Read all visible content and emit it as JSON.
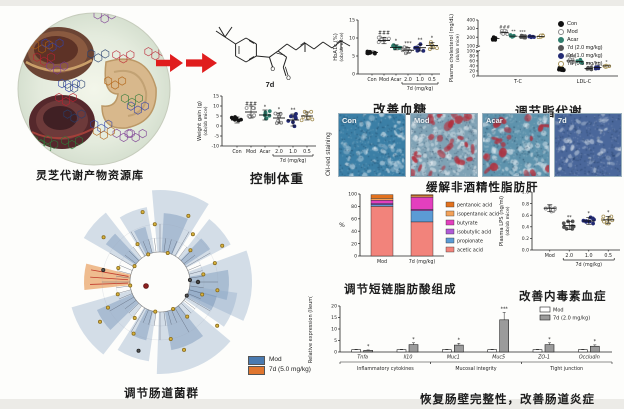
{
  "panels": {
    "library": {
      "caption": "灵芝代谢产物资源库"
    },
    "compound": {
      "label": "7d"
    },
    "weight": {
      "caption": "控制体重"
    },
    "glucose": {
      "caption": "改善血糖"
    },
    "lipid": {
      "caption": "调节脂代谢"
    },
    "liver": {
      "caption": "缓解非酒精性脂肪肝",
      "stain_label": "Oil-red staining",
      "images": [
        {
          "label": "Con",
          "base": "#3b7fa6",
          "red": 0,
          "pale": 70
        },
        {
          "label": "Mod",
          "base": "#7fa2b5",
          "red": 30,
          "pale": 130
        },
        {
          "label": "Acar",
          "base": "#5e93ad",
          "red": 20,
          "pale": 95
        },
        {
          "label": "7d",
          "base": "#4a679b",
          "red": 0,
          "pale": 45
        }
      ]
    },
    "microbiota": {
      "caption": "调节肠道菌群",
      "legend": [
        {
          "label": "Mod",
          "color": "#4a7ab0"
        },
        {
          "label": "7d (5.0 mg/kg)",
          "color": "#e0762f"
        }
      ]
    },
    "scfa": {
      "caption": "调节短链脂肪酸组成"
    },
    "lps": {
      "caption": "改善内毒素血症"
    },
    "ileum": {
      "caption": "恢复肠壁完整性，改善肠道炎症"
    }
  },
  "chart_data": [
    {
      "id": "weight",
      "type": "scatter",
      "seed": 1,
      "ylabel": "Weight gain (g)",
      "ylabel2": "(ob/ob mice)",
      "ylim": [
        -10,
        15
      ],
      "yticks": [
        -10,
        -5,
        0,
        5,
        10,
        15
      ],
      "groups": [
        {
          "label": "Con",
          "mean": 3,
          "sd": 1.5,
          "color": "#151515",
          "open": false
        },
        {
          "label": "Mod",
          "mean": 7,
          "sd": 3,
          "color": "#8a8a8a",
          "open": true,
          "sig": "###"
        },
        {
          "label": "Acar",
          "mean": 5.5,
          "sd": 2.5,
          "color": "#2f7d6d",
          "open": false,
          "sig": "*"
        },
        {
          "label": "2.0",
          "mean": 4,
          "sd": 2.5,
          "color": "#777777",
          "open": true,
          "sig": "*"
        },
        {
          "label": "1.0",
          "mean": 3,
          "sd": 3,
          "color": "#232a73",
          "open": false,
          "sig": "**"
        },
        {
          "label": "0.5",
          "mean": 5,
          "sd": 2,
          "color": "#a59157",
          "open": true
        }
      ],
      "bracket": {
        "label": "7d (mg/kg)",
        "from": 3,
        "to": 5
      }
    },
    {
      "id": "hba1c",
      "type": "scatter",
      "seed": 2,
      "ylabel": "HbA1c (%)",
      "ylabel2": "(ob/ob mice)",
      "ylim": [
        0,
        15
      ],
      "yticks": [
        0,
        5,
        10,
        15
      ],
      "groups": [
        {
          "label": "Con",
          "mean": 6,
          "sd": 0.4,
          "color": "#151515",
          "open": false
        },
        {
          "label": "Mod",
          "mean": 9.3,
          "sd": 0.9,
          "color": "#8a8a8a",
          "open": true,
          "sig": "###"
        },
        {
          "label": "Acar",
          "mean": 7.4,
          "sd": 0.7,
          "color": "#2f7d6d",
          "open": false,
          "sig": "*"
        },
        {
          "label": "2.0",
          "mean": 6.6,
          "sd": 0.8,
          "color": "#777777",
          "open": true,
          "sig": "***"
        },
        {
          "label": "1.0",
          "mean": 7.3,
          "sd": 0.9,
          "color": "#232a73",
          "open": false,
          "sig": "**"
        },
        {
          "label": "0.5",
          "mean": 7.9,
          "sd": 0.9,
          "color": "#a59157",
          "open": true,
          "sig": "*"
        }
      ],
      "bracket": {
        "label": "7d (mg/kg)",
        "from": 3,
        "to": 5
      }
    },
    {
      "id": "cholesterol",
      "type": "scatter",
      "ylabel": "Plasma cholesterol (mg/dL)",
      "ylabel2": "(ob/ob mice)",
      "axis_break": 100,
      "yticks_low": [
        0,
        20,
        40,
        60,
        80,
        100
      ],
      "yticks_high": [
        200,
        300,
        400
      ],
      "series": [
        {
          "label": "Con",
          "color": "#111111",
          "open": false
        },
        {
          "label": "Mod",
          "color": "#8a8a8a",
          "open": true
        },
        {
          "label": "Acar",
          "color": "#2f7d6d",
          "open": false
        },
        {
          "label": "7d (2.0 mg/kg)",
          "color": "#555555",
          "open": false
        },
        {
          "label": "7d (1.0 mg/kg)",
          "color": "#232a73",
          "open": false
        },
        {
          "label": "7d (0.5 mg/kg)",
          "color": "#a59157",
          "open": true
        }
      ],
      "clusters": [
        {
          "label": "T-C",
          "points": [
            {
              "mean": 185,
              "sd": 18
            },
            {
              "mean": 255,
              "sd": 25,
              "sig": "###"
            },
            {
              "mean": 212,
              "sd": 15,
              "sig": "**"
            },
            {
              "mean": 205,
              "sd": 15,
              "sig": "***"
            },
            {
              "mean": 212,
              "sd": 14
            },
            {
              "mean": 208,
              "sd": 16
            }
          ]
        },
        {
          "label": "LDL-C",
          "points": [
            {
              "mean": 28,
              "sd": 6
            },
            {
              "mean": 60,
              "sd": 8,
              "sig": "###"
            },
            {
              "mean": 58,
              "sd": 7
            },
            {
              "mean": 30,
              "sd": 5,
              "sig": "**"
            },
            {
              "mean": 34,
              "sd": 6,
              "sig": "**"
            },
            {
              "mean": 40,
              "sd": 6,
              "sig": "*"
            }
          ]
        }
      ]
    },
    {
      "id": "scfa",
      "type": "stacked-bar",
      "ylabel": "%",
      "ylim": [
        0,
        100
      ],
      "yticks": [
        0,
        20,
        40,
        60,
        80,
        100
      ],
      "categories": [
        "Mod",
        "7d (mg/kg)"
      ],
      "series": [
        {
          "label": "acetic acid",
          "color": "#f2837b",
          "values": [
            80,
            55
          ]
        },
        {
          "label": "propionate",
          "color": "#5b9bd5",
          "values": [
            3,
            18
          ]
        },
        {
          "label": "isobutylic acid",
          "color": "#b05bd6",
          "values": [
            2,
            2
          ]
        },
        {
          "label": "butyrate",
          "color": "#e33fbe",
          "values": [
            5,
            20
          ]
        },
        {
          "label": "isopentanoic acid",
          "color": "#f4a259",
          "values": [
            3,
            2
          ]
        },
        {
          "label": "pentanoic acid",
          "color": "#e2711d",
          "values": [
            6,
            2
          ]
        }
      ]
    },
    {
      "id": "lps",
      "type": "scatter",
      "seed": 3,
      "ylabel": "Plasma LPS (ng/ml)",
      "ylabel2": "(ob/ob mice)",
      "ylim": [
        0,
        1
      ],
      "yticks": [
        "0.0",
        "0.2",
        "0.4",
        "0.6",
        "0.8",
        "1.0"
      ],
      "groups": [
        {
          "label": "Mod",
          "mean": 0.72,
          "sd": 0.06,
          "color": "#8a8a8a",
          "open": true
        },
        {
          "label": "2.0",
          "mean": 0.42,
          "sd": 0.07,
          "color": "#555555",
          "open": false,
          "sig": "**"
        },
        {
          "label": "1.0",
          "mean": 0.5,
          "sd": 0.06,
          "color": "#232a73",
          "open": false,
          "sig": "*"
        },
        {
          "label": "0.5",
          "mean": 0.52,
          "sd": 0.06,
          "color": "#a59157",
          "open": true,
          "sig": "*"
        }
      ],
      "bracket": {
        "label": "7d (mg/kg)",
        "from": 1,
        "to": 3
      }
    },
    {
      "id": "ileum",
      "type": "grouped-bar",
      "ylabel": "Relative expression (Ileum)",
      "ylim": [
        0,
        20
      ],
      "yticks": [
        0,
        5,
        10,
        15,
        20
      ],
      "genes": [
        "Tnfa",
        "Il10",
        "Muc1",
        "Muc5",
        "ZO-1",
        "Occludin"
      ],
      "groups": [
        {
          "label": "Inflammatory cytokines",
          "from": 0,
          "to": 1
        },
        {
          "label": "Mucosal integrity",
          "from": 2,
          "to": 3
        },
        {
          "label": "Tight junction",
          "from": 4,
          "to": 5
        }
      ],
      "series": [
        {
          "label": "Mod",
          "color": "#ffffff",
          "values": [
            1,
            1,
            1,
            1,
            1,
            1
          ],
          "err": [
            0.15,
            0.15,
            0.15,
            0.15,
            0.15,
            0.15
          ]
        },
        {
          "label": "7d (2.0 mg/kg)",
          "color": "#9b9b9b",
          "values": [
            0.7,
            3.2,
            3.0,
            14,
            3.2,
            2.5
          ],
          "err": [
            0.2,
            0.8,
            0.8,
            3.2,
            0.8,
            0.6
          ],
          "sig": [
            "*",
            "*",
            "*",
            "***",
            "*",
            "*"
          ]
        }
      ]
    },
    {
      "id": "lefse",
      "type": "cladogram",
      "groups": [
        "Mod",
        "7d (5.0 mg/kg)"
      ],
      "colors": [
        "#4a7ab0",
        "#e0762f"
      ]
    }
  ]
}
